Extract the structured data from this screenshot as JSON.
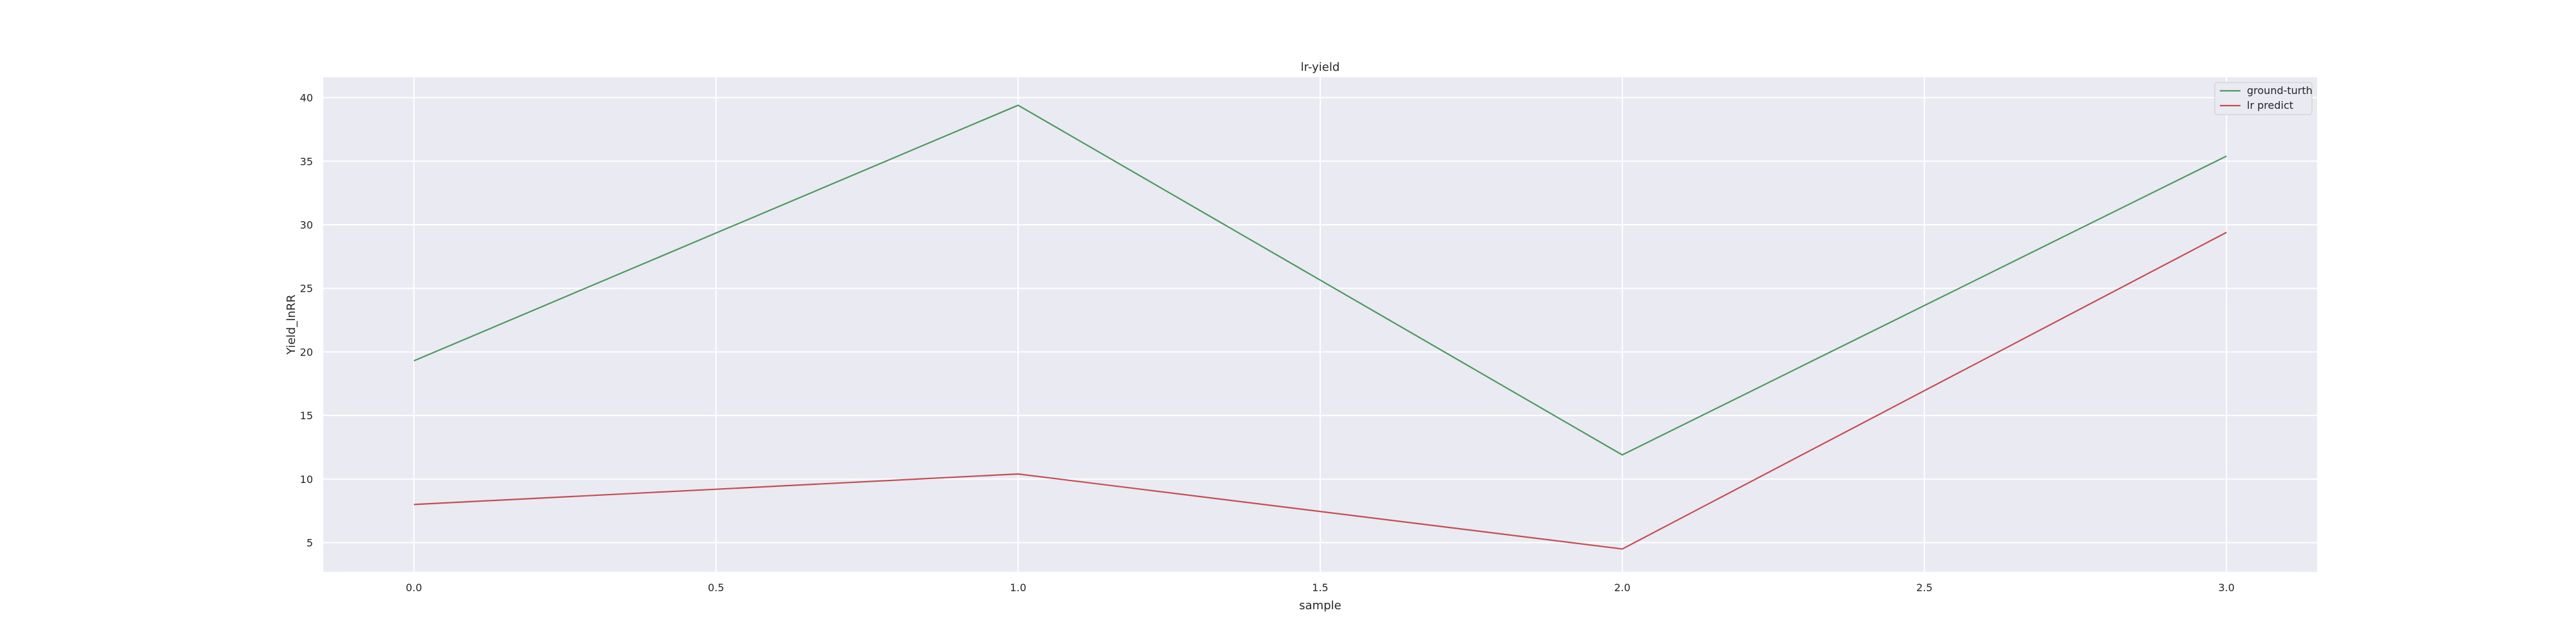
{
  "chart_data": {
    "type": "line",
    "title": "lr-yield",
    "xlabel": "sample",
    "ylabel": "Yield_lnRR",
    "x": [
      0,
      1,
      2,
      3
    ],
    "series": [
      {
        "name": "ground-turth",
        "color": "#4c9a5e",
        "values": [
          19.3,
          39.4,
          11.9,
          35.4
        ]
      },
      {
        "name": "lr predict",
        "color": "#c44e52",
        "values": [
          8.0,
          10.4,
          4.5,
          29.4
        ]
      }
    ],
    "xlim": [
      -0.15,
      3.15
    ],
    "ylim": [
      2.7,
      41.6
    ],
    "xticks": [
      0.0,
      0.5,
      1.0,
      1.5,
      2.0,
      2.5,
      3.0
    ],
    "xtick_labels": [
      "0.0",
      "0.5",
      "1.0",
      "1.5",
      "2.0",
      "2.5",
      "3.0"
    ],
    "yticks": [
      5,
      10,
      15,
      20,
      25,
      30,
      35,
      40
    ],
    "ytick_labels": [
      "5",
      "10",
      "15",
      "20",
      "25",
      "30",
      "35",
      "40"
    ],
    "grid": true,
    "legend_position": "top-right",
    "background_color": "#eaeaf2",
    "grid_color": "#ffffff"
  }
}
